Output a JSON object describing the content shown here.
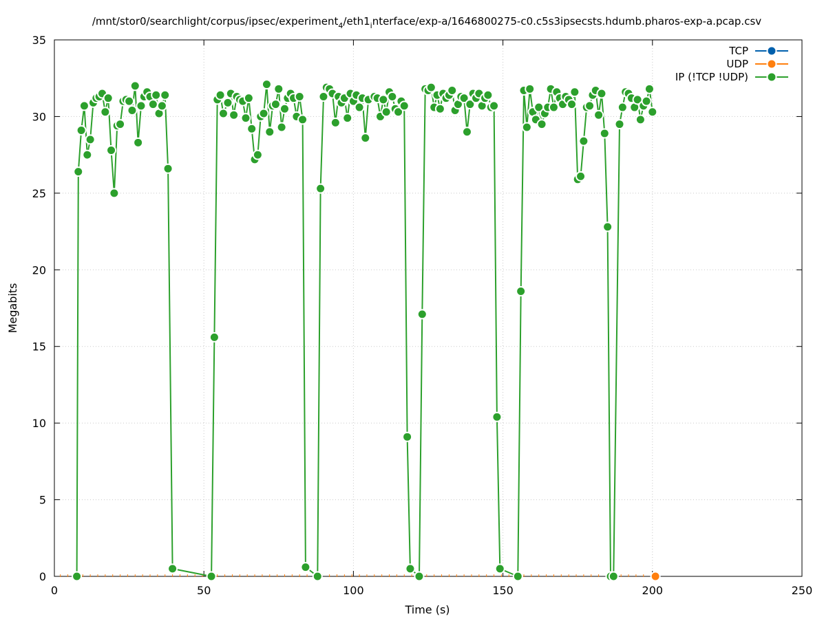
{
  "chart_data": {
    "type": "line",
    "title": "/mnt/stor0/searchlight/corpus/ipsec/experiment",
    "title_sub1": "4",
    "title_mid": "/eth1",
    "title_sub2": "i",
    "title_end": "nterface/exp-a/1646800275-c0.c5s3ipsecsts.hdumb.pharos-exp-a.pcap.csv",
    "xlabel": "Time (s)",
    "ylabel": "Megabits",
    "xlim": [
      0,
      250
    ],
    "ylim": [
      0,
      35
    ],
    "x_ticks": [
      "0",
      "50",
      "100",
      "150",
      "200",
      "250"
    ],
    "y_ticks": [
      "0",
      "5",
      "10",
      "15",
      "20",
      "25",
      "30",
      "35"
    ],
    "grid": true,
    "legend_position": "top-right",
    "series": [
      {
        "name": "TCP",
        "color": "#0060ad",
        "points": []
      },
      {
        "name": "UDP",
        "color": "#ff7f0e",
        "points": [
          [
            201,
            0
          ]
        ]
      },
      {
        "name": "IP (!TCP  !UDP)",
        "color": "#2ca02c",
        "points": [
          [
            7.5,
            0
          ],
          [
            8,
            26.4
          ],
          [
            9,
            29.1
          ],
          [
            10,
            30.7
          ],
          [
            11,
            27.5
          ],
          [
            12,
            28.5
          ],
          [
            13,
            30.9
          ],
          [
            14,
            31.2
          ],
          [
            15,
            31.3
          ],
          [
            16,
            31.5
          ],
          [
            17,
            30.3
          ],
          [
            18,
            31.2
          ],
          [
            19,
            27.8
          ],
          [
            20,
            25
          ],
          [
            21,
            29.4
          ],
          [
            22,
            29.5
          ],
          [
            23,
            31
          ],
          [
            24,
            31.1
          ],
          [
            25,
            31
          ],
          [
            26,
            30.4
          ],
          [
            27,
            32
          ],
          [
            28,
            28.3
          ],
          [
            29,
            30.7
          ],
          [
            30,
            31.3
          ],
          [
            31,
            31.6
          ],
          [
            32,
            31.3
          ],
          [
            33,
            30.8
          ],
          [
            34,
            31.4
          ],
          [
            35,
            30.2
          ],
          [
            36,
            30.7
          ],
          [
            37,
            31.4
          ],
          [
            38,
            26.6
          ],
          [
            39.5,
            0.5
          ],
          [
            52.5,
            0
          ],
          [
            53.5,
            15.6
          ],
          [
            54.5,
            31.1
          ],
          [
            55.5,
            31.4
          ],
          [
            56.5,
            30.2
          ],
          [
            58,
            30.9
          ],
          [
            59,
            31.5
          ],
          [
            60,
            30.1
          ],
          [
            61,
            31.3
          ],
          [
            62,
            31.1
          ],
          [
            63,
            31
          ],
          [
            64,
            29.9
          ],
          [
            65,
            31.2
          ],
          [
            66,
            29.2
          ],
          [
            67,
            27.2
          ],
          [
            68,
            27.5
          ],
          [
            69,
            30
          ],
          [
            70,
            30.2
          ],
          [
            71,
            32.1
          ],
          [
            72,
            29
          ],
          [
            73,
            30.7
          ],
          [
            74,
            30.8
          ],
          [
            75,
            31.8
          ],
          [
            76,
            29.3
          ],
          [
            77,
            30.5
          ],
          [
            78,
            31.2
          ],
          [
            79,
            31.5
          ],
          [
            80,
            31.2
          ],
          [
            81,
            30
          ],
          [
            82,
            31.3
          ],
          [
            83,
            29.8
          ],
          [
            84,
            0.6
          ],
          [
            88,
            0
          ],
          [
            89,
            25.3
          ],
          [
            90,
            31.3
          ],
          [
            91,
            31.9
          ],
          [
            92,
            31.8
          ],
          [
            93,
            31.5
          ],
          [
            94,
            29.6
          ],
          [
            95,
            31.3
          ],
          [
            96,
            30.9
          ],
          [
            97,
            31.2
          ],
          [
            98,
            29.9
          ],
          [
            99,
            31.5
          ],
          [
            100,
            31
          ],
          [
            101,
            31.4
          ],
          [
            102,
            30.6
          ],
          [
            103,
            31.2
          ],
          [
            104,
            28.6
          ],
          [
            105,
            31.1
          ],
          [
            107,
            31.3
          ],
          [
            108,
            31.2
          ],
          [
            109,
            30
          ],
          [
            110,
            31.1
          ],
          [
            111,
            30.3
          ],
          [
            112,
            31.6
          ],
          [
            113,
            31.3
          ],
          [
            114,
            30.5
          ],
          [
            115,
            30.3
          ],
          [
            116,
            31
          ],
          [
            117,
            30.7
          ],
          [
            118,
            9.1
          ],
          [
            119,
            0.5
          ],
          [
            122,
            0
          ],
          [
            123,
            17.1
          ],
          [
            124,
            31.8
          ],
          [
            125,
            31.7
          ],
          [
            126,
            31.9
          ],
          [
            127,
            30.6
          ],
          [
            128,
            31.4
          ],
          [
            129,
            30.5
          ],
          [
            130,
            31.5
          ],
          [
            131,
            31.2
          ],
          [
            132,
            31.4
          ],
          [
            133,
            31.7
          ],
          [
            134,
            30.4
          ],
          [
            135,
            30.8
          ],
          [
            136,
            31.3
          ],
          [
            137,
            31.2
          ],
          [
            138,
            29
          ],
          [
            139,
            30.8
          ],
          [
            140,
            31.5
          ],
          [
            141,
            31.2
          ],
          [
            142,
            31.5
          ],
          [
            143,
            30.7
          ],
          [
            144,
            31.2
          ],
          [
            145,
            31.4
          ],
          [
            146,
            30.6
          ],
          [
            147,
            30.7
          ],
          [
            148,
            10.4
          ],
          [
            149,
            0.5
          ],
          [
            155,
            0
          ],
          [
            156,
            18.6
          ],
          [
            157,
            31.7
          ],
          [
            158,
            29.3
          ],
          [
            159,
            31.8
          ],
          [
            160,
            30.3
          ],
          [
            161,
            29.8
          ],
          [
            162,
            30.6
          ],
          [
            163,
            29.5
          ],
          [
            164,
            30.2
          ],
          [
            165,
            30.6
          ],
          [
            166,
            31.8
          ],
          [
            167,
            30.6
          ],
          [
            168,
            31.6
          ],
          [
            169,
            31.2
          ],
          [
            170,
            30.8
          ],
          [
            171,
            31.3
          ],
          [
            172,
            31.1
          ],
          [
            173,
            30.8
          ],
          [
            174,
            31.6
          ],
          [
            175,
            25.9
          ],
          [
            176,
            26.1
          ],
          [
            177,
            28.4
          ],
          [
            178,
            30.6
          ],
          [
            179,
            30.7
          ],
          [
            180,
            31.4
          ],
          [
            181,
            31.7
          ],
          [
            182,
            30.1
          ],
          [
            183,
            31.5
          ],
          [
            184,
            28.9
          ],
          [
            185,
            22.8
          ],
          [
            186,
            0
          ],
          [
            187,
            0
          ],
          [
            189,
            29.5
          ],
          [
            190,
            30.6
          ],
          [
            191,
            31.6
          ],
          [
            192,
            31.5
          ],
          [
            193,
            31.2
          ],
          [
            194,
            30.6
          ],
          [
            195,
            31.1
          ],
          [
            196,
            29.8
          ],
          [
            197,
            30.7
          ],
          [
            198,
            31
          ],
          [
            199,
            31.8
          ],
          [
            200,
            30.3
          ]
        ]
      }
    ]
  }
}
